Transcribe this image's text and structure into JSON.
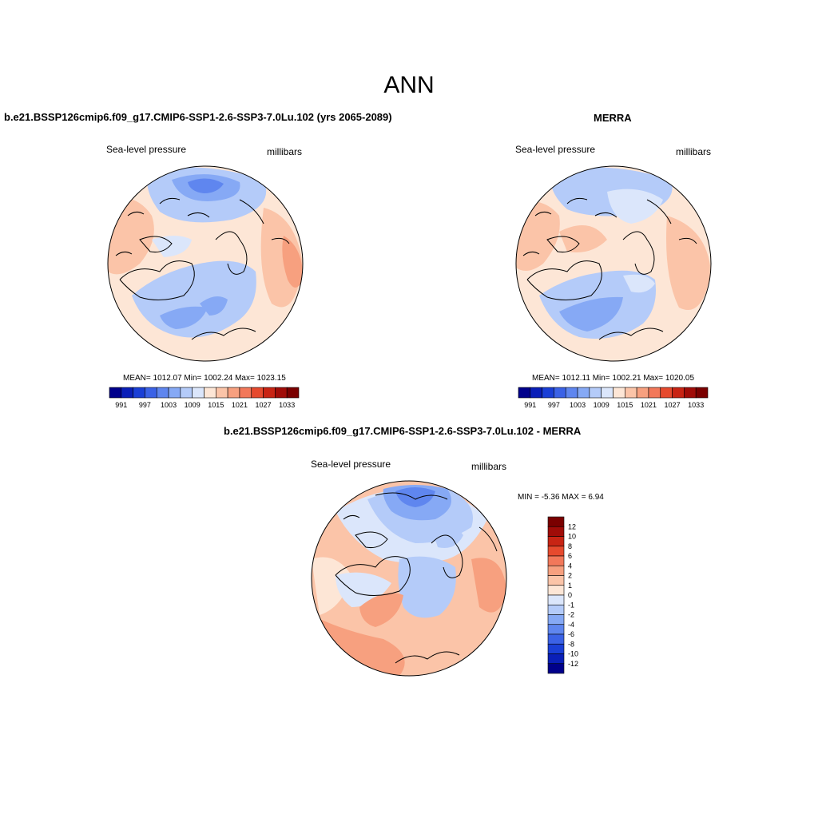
{
  "figure": {
    "title": "ANN"
  },
  "chart_data": [
    {
      "type": "heatmap",
      "projection": "north-polar-stereographic",
      "title": "b.e21.BSSP126cmip6.f09_g17.CMIP6-SSP1-2.6-SSP3-7.0Lu.102 (yrs 2065-2089)",
      "left_label": "Sea-level pressure",
      "right_label": "millibars",
      "stats": {
        "mean": 1012.07,
        "min": 1002.24,
        "max": 1023.15
      },
      "stats_text": "MEAN= 1012.07  Min= 1002.24  Max= 1023.15",
      "colorbar_levels": [
        991,
        994,
        997,
        1000,
        1003,
        1006,
        1009,
        1012,
        1015,
        1018,
        1021,
        1024,
        1027,
        1030,
        1033
      ],
      "colorbar_tick_labels": [
        "991",
        "997",
        "1003",
        "1009",
        "1015",
        "1021",
        "1027",
        "1033"
      ],
      "colors": [
        "#00008b",
        "#0a1fb8",
        "#1a3fd6",
        "#3b62e6",
        "#5f86ef",
        "#86a9f5",
        "#b4cbf9",
        "#dbe6fb",
        "#fde6d6",
        "#fbc4a8",
        "#f7a07f",
        "#f2785a",
        "#e64a2e",
        "#c82414",
        "#a00c08",
        "#7a0000"
      ]
    },
    {
      "type": "heatmap",
      "projection": "north-polar-stereographic",
      "title": "MERRA",
      "left_label": "Sea-level pressure",
      "right_label": "millibars",
      "stats": {
        "mean": 1012.11,
        "min": 1002.21,
        "max": 1020.05
      },
      "stats_text": "MEAN= 1012.11  Min= 1002.21  Max= 1020.05",
      "colorbar_levels": [
        991,
        994,
        997,
        1000,
        1003,
        1006,
        1009,
        1012,
        1015,
        1018,
        1021,
        1024,
        1027,
        1030,
        1033
      ],
      "colorbar_tick_labels": [
        "991",
        "997",
        "1003",
        "1009",
        "1015",
        "1021",
        "1027",
        "1033"
      ],
      "colors": [
        "#00008b",
        "#0a1fb8",
        "#1a3fd6",
        "#3b62e6",
        "#5f86ef",
        "#86a9f5",
        "#b4cbf9",
        "#dbe6fb",
        "#fde6d6",
        "#fbc4a8",
        "#f7a07f",
        "#f2785a",
        "#e64a2e",
        "#c82414",
        "#a00c08",
        "#7a0000"
      ]
    },
    {
      "type": "heatmap",
      "projection": "north-polar-stereographic",
      "title": "b.e21.BSSP126cmip6.f09_g17.CMIP6-SSP1-2.6-SSP3-7.0Lu.102 - MERRA",
      "left_label": "Sea-level pressure",
      "right_label": "millibars",
      "stats": {
        "min": -5.36,
        "max": 6.94
      },
      "stats_text": "MIN =  -5.36 MAX =   6.94",
      "colorbar_levels": [
        12,
        10,
        8,
        6,
        4,
        2,
        1,
        0,
        -1,
        -2,
        -4,
        -6,
        -8,
        -10,
        -12
      ],
      "colorbar_tick_labels": [
        "12",
        "10",
        "8",
        "6",
        "4",
        "2",
        "1",
        "0",
        "-1",
        "-2",
        "-4",
        "-6",
        "-8",
        "-10",
        "-12"
      ],
      "colors": [
        "#7a0000",
        "#a00c08",
        "#c82414",
        "#e64a2e",
        "#f2785a",
        "#f7a07f",
        "#fbc4a8",
        "#fde6d6",
        "#dbe6fb",
        "#b4cbf9",
        "#86a9f5",
        "#5f86ef",
        "#3b62e6",
        "#1a3fd6",
        "#0a1fb8",
        "#00008b"
      ]
    }
  ],
  "field_colors": {
    "neutral_high": "#fde6d6",
    "high": "#fbc4a8",
    "higher": "#f7a07f",
    "neutral_low": "#dbe6fb",
    "low": "#b4cbf9",
    "lower": "#86a9f5",
    "lowest": "#5f86ef",
    "coast": "#000000"
  }
}
